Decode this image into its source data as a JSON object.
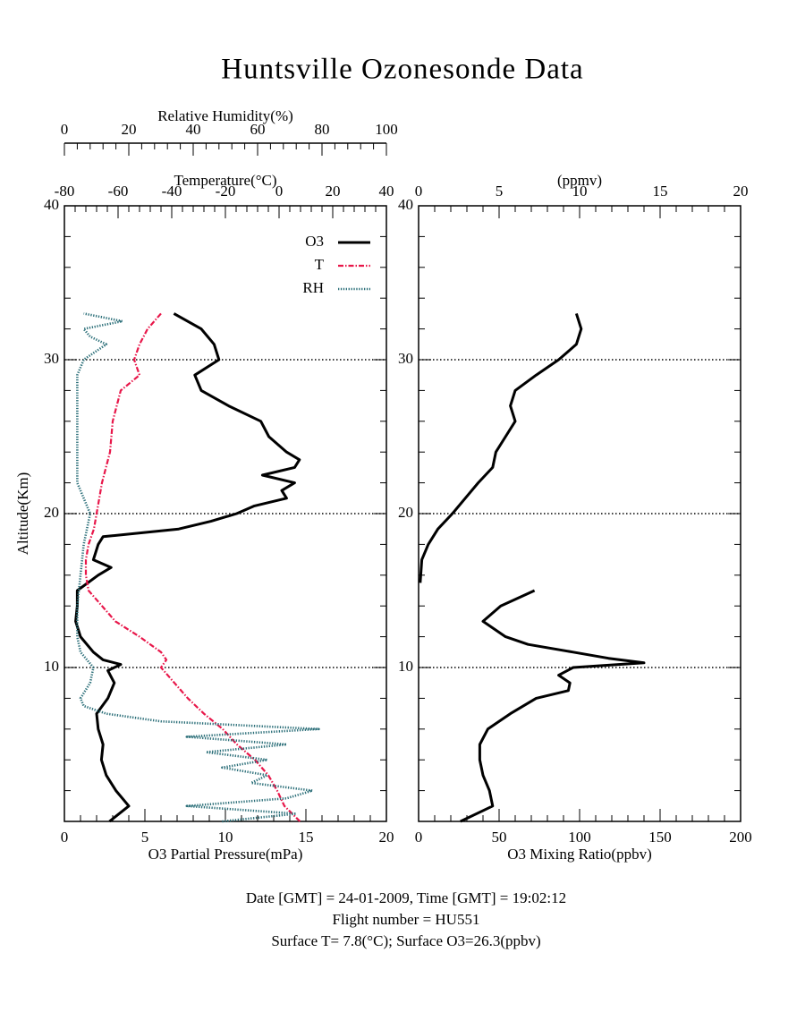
{
  "title": "Huntsville Ozonesonde Data",
  "footer": [
    "Date [GMT] = 24-01-2009,  Time [GMT] = 19:02:12",
    "Flight number = HU551",
    "Surface T= 7.8(°C); Surface O3=26.3(ppbv)"
  ],
  "chart_data": [
    {
      "type": "line",
      "ylabel": "Altitude(Km)",
      "ylim": [
        0,
        40
      ],
      "yticks": [
        10,
        20,
        30,
        40
      ],
      "grid": "dotted",
      "legend": "upper right",
      "xlabel": "O3 Partial Pressure(mPa)",
      "xlim": [
        0,
        20
      ],
      "xticks": [
        0,
        5,
        10,
        15,
        20
      ],
      "x2label": "Temperature(°C)",
      "x2lim": [
        -80,
        40
      ],
      "x2ticks": [
        -80,
        -60,
        -40,
        -20,
        0,
        20,
        40
      ],
      "x3label": "Relative Humidity(%)",
      "x3lim": [
        0,
        100
      ],
      "x3ticks": [
        0,
        20,
        40,
        60,
        80,
        100
      ],
      "series": [
        {
          "name": "O3",
          "color": "#000000",
          "axis": "x",
          "style": "solid",
          "altitude": [
            0,
            1,
            2,
            3,
            4,
            5,
            6,
            7,
            8,
            9,
            9.8,
            10.2,
            10.5,
            11,
            12,
            13,
            14,
            15,
            16,
            16.5,
            17,
            18,
            18.5,
            19,
            19.5,
            20,
            20.5,
            21,
            21.5,
            22,
            22.5,
            23,
            23.5,
            24,
            25,
            26,
            27,
            28,
            29,
            30,
            31,
            32,
            33
          ],
          "values": [
            2.8,
            4.0,
            3.2,
            2.6,
            2.3,
            2.4,
            2.1,
            2.0,
            2.7,
            3.1,
            2.7,
            3.5,
            2.4,
            1.8,
            1.0,
            0.7,
            0.8,
            0.8,
            2.1,
            2.9,
            1.8,
            2.1,
            2.4,
            7.1,
            9.1,
            10.7,
            11.8,
            13.8,
            13.5,
            14.3,
            12.3,
            14.3,
            14.6,
            13.8,
            12.7,
            12.2,
            10.2,
            8.5,
            8.1,
            9.6,
            9.3,
            8.5,
            6.8
          ]
        },
        {
          "name": "T",
          "color": "#e8174a",
          "axis": "x2",
          "style": "dashdot",
          "altitude": [
            0,
            1,
            2,
            3,
            4,
            5,
            6,
            7,
            8,
            9,
            10,
            10.5,
            11,
            12,
            13,
            14,
            15,
            16,
            17,
            18,
            19,
            20,
            22,
            24,
            26,
            28,
            29,
            30,
            31,
            32,
            33
          ],
          "values": [
            7.8,
            2,
            -0.7,
            -4,
            -9,
            -15.7,
            -21,
            -28,
            -34,
            -39,
            -44,
            -42,
            -44,
            -52,
            -61,
            -66,
            -71,
            -72,
            -72,
            -71,
            -69,
            -68,
            -66,
            -63,
            -62,
            -59,
            -52,
            -54,
            -52,
            -49,
            -44
          ]
        },
        {
          "name": "RH",
          "color": "#2a6e78",
          "axis": "x3",
          "style": "dotted",
          "altitude": [
            0,
            0.5,
            1,
            1.5,
            2,
            2.5,
            3,
            3.5,
            4,
            4.5,
            5,
            5.5,
            6,
            6.5,
            7,
            7.5,
            8,
            9,
            10,
            11,
            12,
            14,
            16,
            18,
            20,
            21,
            22,
            25,
            28,
            29,
            30,
            31,
            31.5,
            32,
            32.5,
            33
          ],
          "values": [
            49,
            72,
            38,
            69,
            77,
            58,
            63,
            49,
            63,
            44,
            69,
            38,
            79,
            30,
            13,
            6,
            5,
            8,
            9,
            5,
            4,
            4,
            5,
            6,
            8,
            6,
            4,
            4,
            4,
            4,
            6,
            13,
            8,
            6,
            18,
            6
          ]
        }
      ]
    },
    {
      "type": "line",
      "ylim": [
        0,
        40
      ],
      "yticks": [
        10,
        20,
        30,
        40
      ],
      "grid": "dotted",
      "xlabel": "O3 Mixing Ratio(ppbv)",
      "xlim": [
        0,
        200
      ],
      "xticks": [
        0,
        50,
        100,
        150,
        200
      ],
      "x2label": "(ppmv)",
      "x2lim": [
        0,
        20
      ],
      "x2ticks": [
        0,
        5,
        10,
        15,
        20
      ],
      "series": [
        {
          "color": "#000000",
          "axis": "x",
          "style": "solid",
          "altitude": [
            0,
            1,
            2,
            3,
            4,
            5,
            6,
            7,
            8,
            8.5,
            9,
            9.5,
            10,
            10.3,
            10.6,
            11,
            11.5,
            12,
            13,
            14,
            15,
            null,
            15.5,
            17,
            18,
            19,
            20,
            21,
            22,
            23,
            24,
            25,
            26,
            27,
            28,
            29,
            30,
            31,
            32,
            33
          ],
          "values": [
            26,
            46,
            44,
            40,
            38,
            38,
            43,
            57,
            73,
            93,
            94,
            87,
            96,
            140,
            118,
            96,
            68,
            54,
            40,
            51,
            72,
            null,
            1,
            2,
            6,
            12,
            21,
            29,
            37,
            46,
            48,
            54,
            60,
            57,
            60,
            73,
            87,
            98,
            101,
            98
          ]
        }
      ]
    }
  ]
}
